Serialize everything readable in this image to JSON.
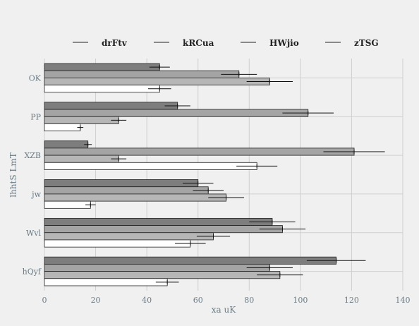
{
  "chart_data": {
    "type": "bar",
    "orientation": "horizontal",
    "categories": [
      "OK",
      "PP",
      "XZB",
      "jw",
      "Wvl",
      "hQyf"
    ],
    "series": [
      {
        "name": "drFtv",
        "color": "#7d7d7d",
        "values": [
          45,
          52,
          17,
          60,
          89,
          114
        ],
        "errors": [
          4,
          5,
          1.5,
          6,
          9,
          11.5
        ]
      },
      {
        "name": "kRCua",
        "color": "#a4a4a4",
        "values": [
          76,
          103,
          121,
          64,
          93,
          88
        ],
        "errors": [
          7,
          10,
          12,
          6,
          9,
          9
        ]
      },
      {
        "name": "HWjio",
        "color": "#b6b6b6",
        "values": [
          88,
          29,
          29,
          71,
          66,
          92
        ],
        "errors": [
          9,
          3,
          3,
          7,
          6.5,
          9
        ]
      },
      {
        "name": "zTSG",
        "color": "#ffffff",
        "values": [
          45,
          14,
          83,
          18,
          57,
          48
        ],
        "errors": [
          4.5,
          1.2,
          8,
          2,
          6,
          4.5
        ]
      }
    ],
    "xlabel": "xa uK",
    "ylabel": "lhhtS LmT",
    "xlim": [
      0,
      140
    ],
    "xticks": [
      0,
      20,
      40,
      60,
      80,
      100,
      120,
      140
    ],
    "grid": true,
    "legend_position": "top"
  }
}
